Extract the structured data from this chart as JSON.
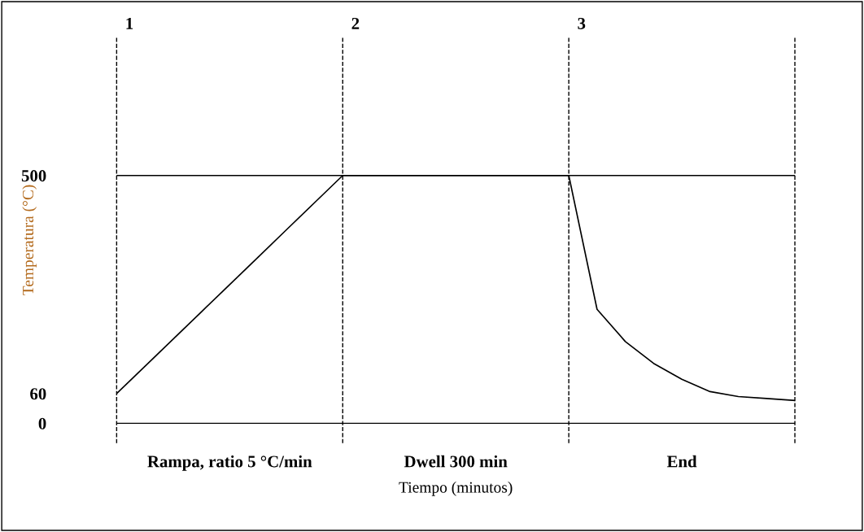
{
  "chart_data": {
    "type": "line",
    "xlabel": "Tiempo (minutos)",
    "ylabel": "Temperatura (°C)",
    "categories": [
      null,
      null,
      null,
      null,
      null,
      null,
      null,
      null,
      null,
      null,
      null,
      null,
      null,
      null,
      null,
      null,
      null,
      null,
      null,
      null,
      null,
      null,
      null,
      null,
      null
    ],
    "series": [
      {
        "color": "#000000",
        "values": [
          60,
          115,
          170,
          225,
          280,
          335,
          390,
          445,
          500,
          500,
          500,
          500,
          500,
          500,
          500,
          500,
          500,
          230,
          165,
          121,
          89,
          64,
          54,
          50,
          46
        ]
      }
    ],
    "ylim": [
      -40,
      780
    ],
    "yticks": [
      0,
      60,
      500
    ],
    "tick_labels": "y",
    "grid": false,
    "legend": false,
    "marker": "none",
    "line_style": "solid",
    "ref_lines": [
      {
        "axis": "y",
        "value": 500,
        "color": "#000000",
        "line_style": "solid"
      },
      {
        "axis": "y",
        "value": 0,
        "color": "#000000",
        "line_style": "solid"
      }
    ],
    "annotations": [
      "1",
      "2",
      "3",
      "Rampa, ratio 5 °C/min",
      "Dwell 300 min",
      "End"
    ]
  }
}
